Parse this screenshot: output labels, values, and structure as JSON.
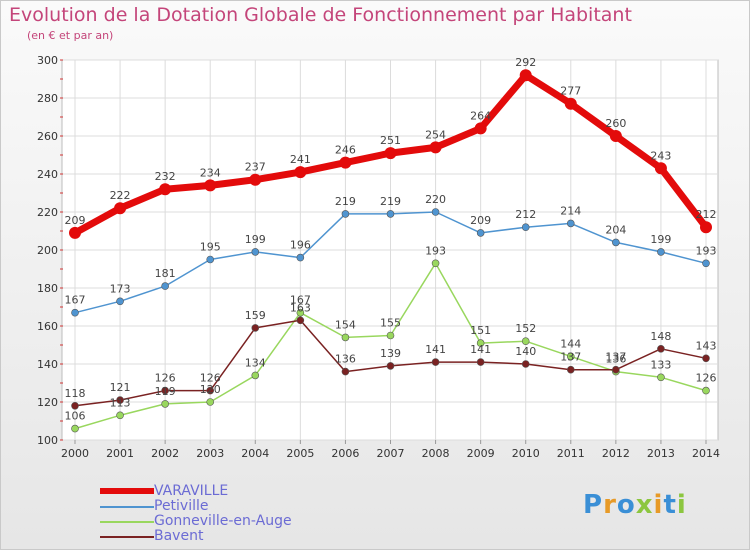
{
  "header": {
    "title": "Evolution de la Dotation Globale de Fonctionnement par Habitant",
    "subtitle": "(en € et par an)"
  },
  "logo": {
    "letters": [
      "P",
      "r",
      "o",
      "x",
      "i",
      "t",
      "i"
    ],
    "colors": [
      "#3a8fd6",
      "#e79a27",
      "#3a8fd6",
      "#8cc63f",
      "#e79a27",
      "#3a8fd6",
      "#8cc63f"
    ]
  },
  "chart_data": {
    "type": "line",
    "x": [
      "2000",
      "2001",
      "2002",
      "2003",
      "2004",
      "2005",
      "2006",
      "2007",
      "2008",
      "2009",
      "2010",
      "2011",
      "2012",
      "2013",
      "2014"
    ],
    "ylim": [
      100,
      300
    ],
    "yticks": [
      100,
      120,
      140,
      160,
      180,
      200,
      220,
      240,
      260,
      280,
      300
    ],
    "grid": true,
    "legend_position": "bottom-left",
    "series": [
      {
        "name": "VARAVILLE",
        "color": "#e30b0b",
        "values": [
          209,
          222,
          232,
          234,
          237,
          241,
          246,
          251,
          254,
          264,
          292,
          277,
          260,
          243,
          212
        ],
        "labels": [
          "209",
          "222",
          "232",
          "234",
          "237",
          "241",
          "246",
          "251",
          "254",
          "264",
          "292",
          "277",
          "260",
          "243",
          "212"
        ]
      },
      {
        "name": "Petiville",
        "color": "#4f94d0",
        "values": [
          167,
          173,
          181,
          195,
          199,
          196,
          219,
          219,
          220,
          209,
          212,
          214,
          204,
          199,
          193
        ],
        "labels": [
          "167",
          "173",
          "181",
          "195",
          "199",
          "196",
          "219",
          "219",
          "220",
          "209",
          "212",
          "214",
          "204",
          "199",
          "193"
        ]
      },
      {
        "name": "Gonneville-en-Auge",
        "color": "#99d75e",
        "values": [
          106,
          113,
          119,
          120,
          134,
          167,
          154,
          155,
          193,
          151,
          152,
          144,
          136,
          133,
          126
        ],
        "labels": [
          "106",
          "113",
          "119",
          "120",
          "134",
          "167",
          "154",
          "155",
          "193",
          "151",
          "152",
          "144",
          "136",
          "133",
          "126"
        ]
      },
      {
        "name": "Bavent",
        "color": "#7a2222",
        "values": [
          118,
          121,
          126,
          126,
          159,
          163,
          136,
          139,
          141,
          141,
          140,
          137,
          137,
          148,
          143
        ],
        "labels": [
          "118",
          "121",
          "126",
          "126",
          "159",
          "163",
          "136",
          "139",
          "141",
          "141",
          "140",
          "137",
          "137",
          "148",
          "143"
        ]
      }
    ]
  }
}
